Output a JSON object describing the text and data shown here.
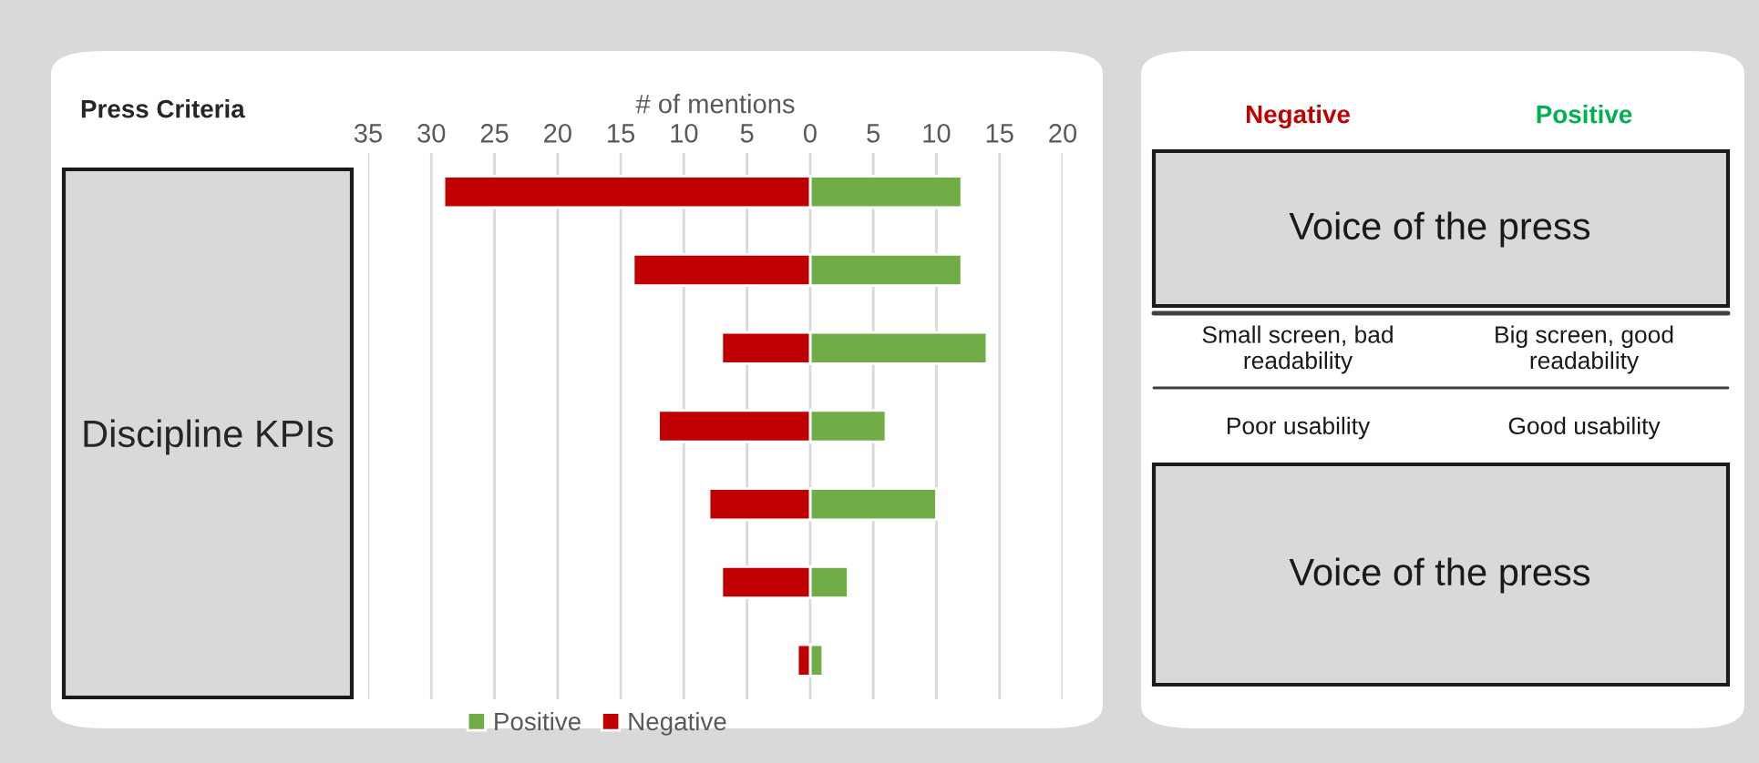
{
  "chart_data": [
    {
      "type": "bar",
      "title": "Press Criteria",
      "xlabel": "# of mentions",
      "orientation": "horizontal",
      "stacked": true,
      "categories": [
        null,
        null,
        null,
        null,
        null,
        null,
        null
      ],
      "series": [
        {
          "name": "Positive",
          "color": "#70ad47",
          "values": [
            12,
            12,
            14,
            6,
            10,
            3,
            1
          ]
        },
        {
          "name": "Negative",
          "color": "#c00000",
          "values": [
            -29,
            -14,
            -7,
            -12,
            -8,
            -7,
            -1
          ]
        }
      ],
      "xlim": [
        -35,
        20
      ],
      "xticks": [
        {
          "value": -35,
          "label": "35"
        },
        {
          "value": -30,
          "label": "30"
        },
        {
          "value": -25,
          "label": "25"
        },
        {
          "value": -20,
          "label": "20"
        },
        {
          "value": -15,
          "label": "15"
        },
        {
          "value": -10,
          "label": "10"
        },
        {
          "value": -5,
          "label": "5"
        },
        0,
        5,
        10,
        15,
        20
      ],
      "grid": "x",
      "legend": "bottom",
      "tick_labels": "x",
      "annotations": [
        "Discipline KPIs"
      ]
    },
    {
      "type": "other",
      "annotations": [
        "Negative",
        "Positive",
        "Voice of the press",
        "Small screen, bad\nreadability",
        "Big screen, good\nreadability",
        "Poor usability",
        "Good usability",
        "Voice of the press"
      ]
    }
  ]
}
